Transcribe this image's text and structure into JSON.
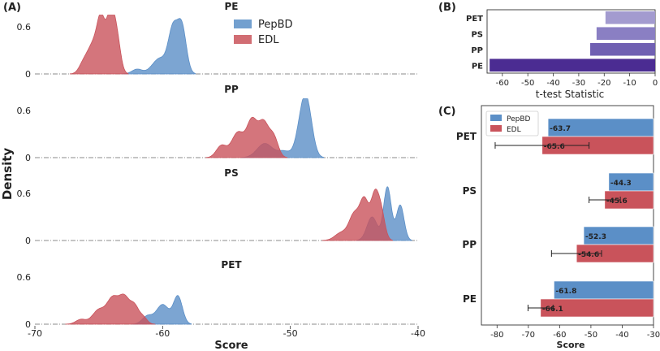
{
  "chart_data": [
    {
      "panel": "(A)",
      "type": "area",
      "kind": "density ridgeline",
      "xlabel": "Score",
      "ylabel": "Density",
      "xlim": [
        -70,
        -40
      ],
      "x_ticks": [
        "-70",
        "-60",
        "-50",
        "-40"
      ],
      "y_tick_labels": [
        "0",
        "0.6"
      ],
      "legend": {
        "placement": "top-center",
        "entries": [
          {
            "name": "PepBD",
            "color": "#5b8fc7"
          },
          {
            "name": "EDL",
            "color": "#c9535b"
          }
        ]
      },
      "facets": [
        {
          "title": "PE",
          "series": [
            {
              "name": "PepBD",
              "peaks": [
                [
                  -62.0,
                  0.06,
                  0.4
                ],
                [
                  -60.2,
                  0.2,
                  0.6
                ],
                [
                  -59.2,
                  0.52,
                  0.35
                ],
                [
                  -58.5,
                  0.6,
                  0.35
                ]
              ]
            },
            {
              "name": "EDL",
              "peaks": [
                [
                  -66.2,
                  0.12,
                  0.35
                ],
                [
                  -65.4,
                  0.38,
                  0.45
                ],
                [
                  -64.8,
                  0.58,
                  0.3
                ],
                [
                  -64.1,
                  0.7,
                  0.3
                ],
                [
                  -63.6,
                  0.45,
                  0.3
                ]
              ]
            }
          ]
        },
        {
          "title": "PP",
          "series": [
            {
              "name": "PepBD",
              "peaks": [
                [
                  -52.0,
                  0.18,
                  0.6
                ],
                [
                  -50.5,
                  0.08,
                  0.5
                ],
                [
                  -49.0,
                  0.55,
                  0.45
                ],
                [
                  -48.6,
                  0.35,
                  0.4
                ]
              ]
            },
            {
              "name": "EDL",
              "peaks": [
                [
                  -55.4,
                  0.15,
                  0.4
                ],
                [
                  -54.1,
                  0.32,
                  0.5
                ],
                [
                  -53.0,
                  0.45,
                  0.4
                ],
                [
                  -52.1,
                  0.43,
                  0.4
                ],
                [
                  -51.3,
                  0.25,
                  0.35
                ]
              ]
            }
          ]
        },
        {
          "title": "PS",
          "series": [
            {
              "name": "PepBD",
              "peaks": [
                [
                  -43.6,
                  0.3,
                  0.4
                ],
                [
                  -42.4,
                  0.68,
                  0.3
                ],
                [
                  -41.4,
                  0.45,
                  0.3
                ]
              ]
            },
            {
              "name": "EDL",
              "peaks": [
                [
                  -46.0,
                  0.1,
                  0.5
                ],
                [
                  -45.0,
                  0.32,
                  0.4
                ],
                [
                  -44.2,
                  0.5,
                  0.35
                ],
                [
                  -43.4,
                  0.52,
                  0.3
                ],
                [
                  -42.9,
                  0.35,
                  0.3
                ]
              ]
            }
          ]
        },
        {
          "title": "PET",
          "series": [
            {
              "name": "PepBD",
              "peaks": [
                [
                  -61.2,
                  0.1,
                  0.4
                ],
                [
                  -60.0,
                  0.25,
                  0.5
                ],
                [
                  -58.8,
                  0.35,
                  0.35
                ]
              ]
            },
            {
              "name": "EDL",
              "peaks": [
                [
                  -66.4,
                  0.06,
                  0.4
                ],
                [
                  -65.0,
                  0.18,
                  0.5
                ],
                [
                  -63.9,
                  0.32,
                  0.45
                ],
                [
                  -63.0,
                  0.32,
                  0.4
                ],
                [
                  -62.2,
                  0.22,
                  0.35
                ],
                [
                  -61.5,
                  0.08,
                  0.3
                ]
              ]
            }
          ]
        }
      ]
    },
    {
      "panel": "(B)",
      "type": "bar",
      "orientation": "horizontal",
      "xlabel": "t-test Statistic",
      "xlim": [
        -66,
        0
      ],
      "x_ticks": [
        "-60",
        "-50",
        "-40",
        "-30",
        "-20",
        "-10",
        "0"
      ],
      "categories": [
        "PET",
        "PS",
        "PP",
        "PE"
      ],
      "values": [
        -19.5,
        -23.0,
        -25.5,
        -65.0
      ],
      "colors": [
        "#a39bcf",
        "#8a7fc3",
        "#7060b2",
        "#4b2c92"
      ]
    },
    {
      "panel": "(C)",
      "type": "bar",
      "orientation": "horizontal",
      "xlabel": "Score",
      "xlim": [
        -85,
        -30
      ],
      "x_ticks": [
        "-80",
        "-70",
        "-60",
        "-50",
        "-40",
        "-30"
      ],
      "categories": [
        "PET",
        "PS",
        "PP",
        "PE"
      ],
      "legend": {
        "placement": "top-left"
      },
      "series": [
        {
          "name": "PepBD",
          "color": "#5b8fc7",
          "values": [
            -63.7,
            -44.3,
            -52.3,
            -61.8
          ],
          "labels": [
            "-63.7",
            "-44.3",
            "-52.3",
            "-61.8"
          ],
          "errors": [
            0,
            0,
            0,
            0
          ]
        },
        {
          "name": "EDL",
          "color": "#c9535b",
          "values": [
            -65.6,
            -45.6,
            -54.6,
            -66.1
          ],
          "labels": [
            "-65.6",
            "-45.6",
            "-54.6",
            "-66.1"
          ],
          "errors": [
            15,
            5,
            8,
            4
          ]
        }
      ]
    }
  ]
}
